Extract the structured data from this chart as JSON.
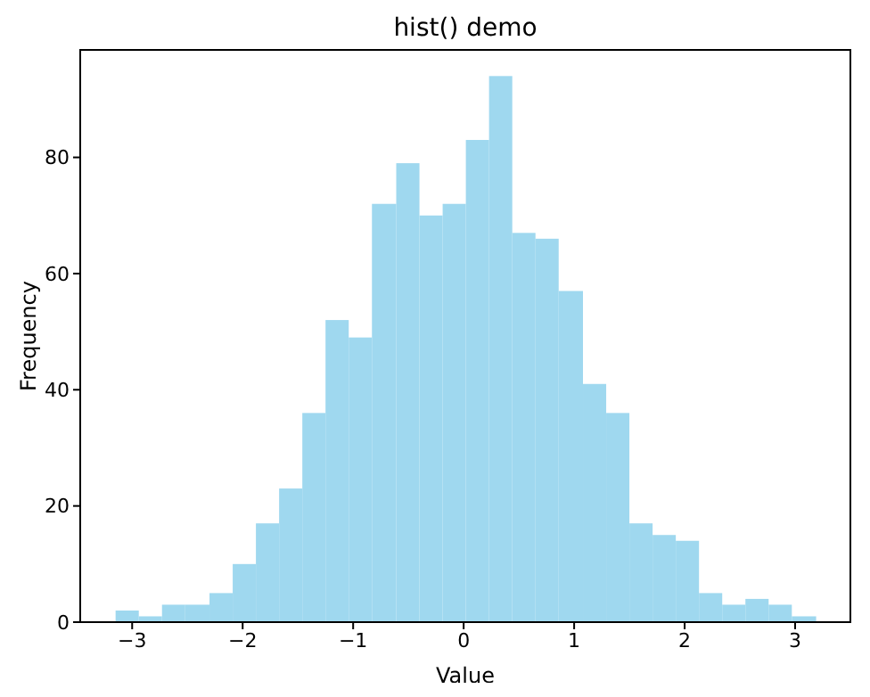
{
  "chart_data": {
    "type": "histogram",
    "title": "hist() demo",
    "xlabel": "Value",
    "ylabel": "Frequency",
    "bins": [
      -3.15,
      -2.94,
      -2.73,
      -2.52,
      -2.3,
      -2.09,
      -1.88,
      -1.67,
      -1.46,
      -1.25,
      -1.04,
      -0.83,
      -0.61,
      -0.4,
      -0.19,
      0.02,
      0.23,
      0.44,
      0.65,
      0.86,
      1.08,
      1.29,
      1.5,
      1.71,
      1.92,
      2.13,
      2.34,
      2.55,
      2.76,
      2.97,
      3.19
    ],
    "values": [
      2,
      1,
      3,
      3,
      5,
      10,
      17,
      23,
      36,
      52,
      49,
      72,
      79,
      70,
      72,
      83,
      94,
      67,
      66,
      57,
      41,
      36,
      17,
      15,
      14,
      5,
      3,
      4,
      3,
      1
    ],
    "color": "#9fd8ef",
    "xlim": [
      -3.47,
      3.5
    ],
    "ylim": [
      0,
      98.5
    ],
    "xticks": [
      -3,
      -2,
      -1,
      0,
      1,
      2,
      3
    ],
    "yticks": [
      0,
      20,
      40,
      60,
      80
    ],
    "grid": false
  }
}
